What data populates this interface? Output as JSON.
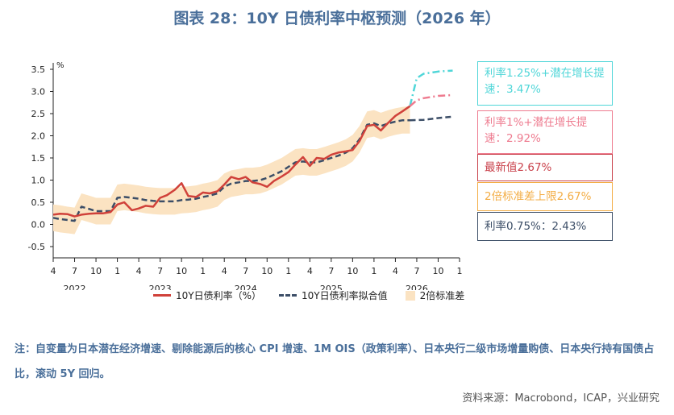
{
  "title": "图表 28：10Y 日债利率中枢预测（2026 年）",
  "chart_data": {
    "type": "line",
    "title": "图表 28：10Y 日债利率中枢预测（2026 年）",
    "unit": "%",
    "ylim": [
      -0.5,
      3.5
    ],
    "yticks": [
      "3.5",
      "3.0",
      "2.5",
      "2.0",
      "1.5",
      "1.0",
      "0.5",
      "0.0",
      "-0.5"
    ],
    "ytick_values": [
      3.5,
      3.0,
      2.5,
      2.0,
      1.5,
      1.0,
      0.5,
      0.0,
      -0.5
    ],
    "xlim": [
      2022.25,
      2027.0
    ],
    "xticks": [
      {
        "label": "4",
        "t": 2022.25
      },
      {
        "label": "7",
        "t": 2022.5
      },
      {
        "label": "10",
        "t": 2022.75
      },
      {
        "label": "1",
        "t": 2023.0
      },
      {
        "label": "4",
        "t": 2023.25
      },
      {
        "label": "7",
        "t": 2023.5
      },
      {
        "label": "10",
        "t": 2023.75
      },
      {
        "label": "1",
        "t": 2024.0
      },
      {
        "label": "4",
        "t": 2024.25
      },
      {
        "label": "7",
        "t": 2024.5
      },
      {
        "label": "10",
        "t": 2024.75
      },
      {
        "label": "1",
        "t": 2025.0
      },
      {
        "label": "4",
        "t": 2025.25
      },
      {
        "label": "7",
        "t": 2025.5
      },
      {
        "label": "10",
        "t": 2025.75
      },
      {
        "label": "1",
        "t": 2026.0
      },
      {
        "label": "4",
        "t": 2026.25
      },
      {
        "label": "7",
        "t": 2026.5
      },
      {
        "label": "10",
        "t": 2026.75
      },
      {
        "label": "1",
        "t": 2027.0
      }
    ],
    "years": [
      {
        "label": "2022",
        "t": 2022.5
      },
      {
        "label": "2023",
        "t": 2023.5
      },
      {
        "label": "2024",
        "t": 2024.5
      },
      {
        "label": "2025",
        "t": 2025.5
      },
      {
        "label": "2026",
        "t": 2026.5
      }
    ],
    "x": [
      2022.25,
      2022.33,
      2022.42,
      2022.5,
      2022.58,
      2022.67,
      2022.75,
      2022.83,
      2022.92,
      2023.0,
      2023.08,
      2023.17,
      2023.25,
      2023.33,
      2023.42,
      2023.5,
      2023.58,
      2023.67,
      2023.75,
      2023.83,
      2023.92,
      2024.0,
      2024.08,
      2024.17,
      2024.25,
      2024.33,
      2024.42,
      2024.5,
      2024.58,
      2024.67,
      2024.75,
      2024.83,
      2024.92,
      2025.0,
      2025.08,
      2025.17,
      2025.25,
      2025.33,
      2025.42,
      2025.5,
      2025.58,
      2025.67,
      2025.75,
      2025.83,
      2025.92,
      2026.0,
      2026.08,
      2026.17,
      2026.25,
      2026.33,
      2026.42
    ],
    "series": [
      {
        "name": "10Y日债利率（%）",
        "color": "#d0413a",
        "style": "solid",
        "values": [
          0.22,
          0.24,
          0.23,
          0.18,
          0.22,
          0.24,
          0.25,
          0.25,
          0.28,
          0.45,
          0.5,
          0.32,
          0.36,
          0.42,
          0.4,
          0.6,
          0.66,
          0.78,
          0.93,
          0.64,
          0.62,
          0.72,
          0.7,
          0.75,
          0.9,
          1.07,
          1.02,
          1.07,
          0.95,
          0.91,
          0.85,
          0.98,
          1.08,
          1.18,
          1.35,
          1.52,
          1.32,
          1.5,
          1.48,
          1.57,
          1.62,
          1.65,
          1.68,
          1.88,
          2.22,
          2.25,
          2.12,
          2.3,
          2.45,
          2.55,
          2.67
        ]
      },
      {
        "name": "10Y日债利率拟合值",
        "color": "#3c4e67",
        "style": "dashed",
        "values": [
          0.15,
          0.12,
          0.1,
          0.08,
          0.4,
          0.35,
          0.3,
          0.3,
          0.3,
          0.6,
          0.62,
          0.6,
          0.58,
          0.55,
          0.53,
          0.52,
          0.52,
          0.52,
          0.55,
          0.56,
          0.58,
          0.62,
          0.65,
          0.7,
          0.85,
          0.92,
          0.95,
          0.98,
          0.98,
          1.0,
          1.05,
          1.12,
          1.2,
          1.3,
          1.4,
          1.42,
          1.4,
          1.4,
          1.45,
          1.5,
          1.55,
          1.62,
          1.72,
          1.92,
          2.25,
          2.28,
          2.22,
          2.28,
          2.32,
          2.35,
          2.35
        ]
      },
      {
        "name": "2倍标准差",
        "color": "#fbe3c2",
        "style": "band",
        "upper": [
          0.45,
          0.43,
          0.4,
          0.38,
          0.7,
          0.65,
          0.6,
          0.6,
          0.6,
          0.9,
          0.92,
          0.9,
          0.88,
          0.85,
          0.83,
          0.82,
          0.82,
          0.82,
          0.85,
          0.86,
          0.88,
          0.92,
          0.95,
          1.0,
          1.15,
          1.22,
          1.25,
          1.28,
          1.28,
          1.3,
          1.35,
          1.42,
          1.5,
          1.6,
          1.7,
          1.72,
          1.7,
          1.7,
          1.75,
          1.8,
          1.85,
          1.92,
          2.02,
          2.22,
          2.55,
          2.58,
          2.52,
          2.58,
          2.62,
          2.65,
          2.67
        ],
        "lower": [
          -0.15,
          -0.18,
          -0.2,
          -0.22,
          0.1,
          0.05,
          0.0,
          0.0,
          0.0,
          0.3,
          0.32,
          0.3,
          0.28,
          0.25,
          0.23,
          0.22,
          0.22,
          0.22,
          0.25,
          0.26,
          0.28,
          0.32,
          0.35,
          0.4,
          0.55,
          0.62,
          0.65,
          0.68,
          0.68,
          0.7,
          0.75,
          0.82,
          0.9,
          1.0,
          1.1,
          1.12,
          1.1,
          1.1,
          1.15,
          1.2,
          1.25,
          1.32,
          1.42,
          1.62,
          1.95,
          1.98,
          1.92,
          1.98,
          2.02,
          2.05,
          2.05
        ]
      }
    ],
    "projections": [
      {
        "name": "利率1.25%+潜在增长提速",
        "color": "#4fd6d8",
        "style": "dashdot",
        "x": [
          2026.42,
          2026.5,
          2026.58,
          2026.75,
          2026.92
        ],
        "values": [
          2.67,
          3.3,
          3.4,
          3.45,
          3.47
        ]
      },
      {
        "name": "利率1%+潜在增长提速",
        "color": "#ee7b8f",
        "style": "dashdot",
        "x": [
          2026.42,
          2026.5,
          2026.58,
          2026.75,
          2026.92
        ],
        "values": [
          2.67,
          2.8,
          2.85,
          2.9,
          2.92
        ]
      },
      {
        "name": "利率0.75%",
        "color": "#3c4e67",
        "style": "dashed",
        "x": [
          2026.42,
          2026.58,
          2026.75,
          2026.92
        ],
        "values": [
          2.35,
          2.36,
          2.4,
          2.43
        ]
      }
    ]
  },
  "legend": {
    "actual": "10Y日债利率（%）",
    "fitted": "10Y日债利率拟合值",
    "band": "2倍标准差"
  },
  "annotations": [
    {
      "id": "box1",
      "text": "利率1.25%+潜在增长提速：3.47%",
      "border": "#4fd6d8",
      "color": "#4fd6d8"
    },
    {
      "id": "box2",
      "text": "利率1%+潜在增长提速：2.92%",
      "border": "#ee7b8f",
      "color": "#ee7b8f"
    },
    {
      "id": "box3",
      "text": "最新值2.67%",
      "border": "#c9414b",
      "color": "#c9414b"
    },
    {
      "id": "box4",
      "text": "2倍标准差上限2.67%",
      "border": "#f3ad45",
      "color": "#f3ad45"
    },
    {
      "id": "box5",
      "text": "利率0.75%：2.43%",
      "border": "#3c4e67",
      "color": "#3c4e67"
    }
  ],
  "note": "注：自变量为日本潜在经济增速、剔除能源后的核心 CPI 增速、1M OIS（政策利率）、日本央行二级市场增量购债、日本央行持有国债占比，滚动 5Y 回归。",
  "source": "资料来源：Macrobond，ICAP，兴业研究"
}
